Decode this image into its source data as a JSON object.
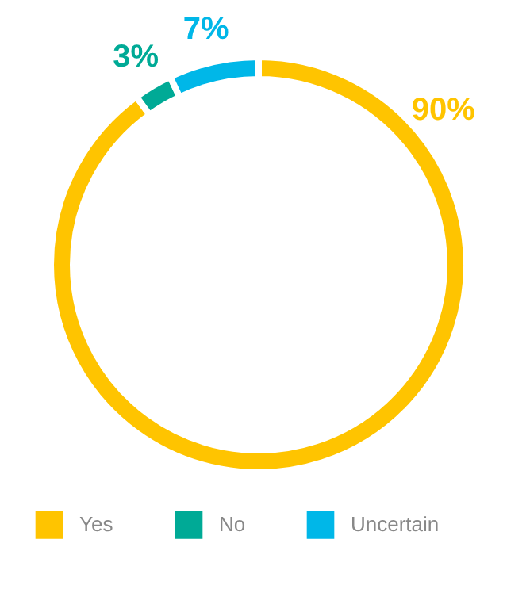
{
  "chart_data": {
    "type": "donut",
    "categories": [
      "Yes",
      "No",
      "Uncertain"
    ],
    "values": [
      90,
      3,
      7
    ],
    "colors": [
      "#ffc400",
      "#00aa96",
      "#00b7e8"
    ],
    "value_labels": [
      "90%",
      "3%",
      "7%"
    ],
    "legend": "bottom"
  }
}
